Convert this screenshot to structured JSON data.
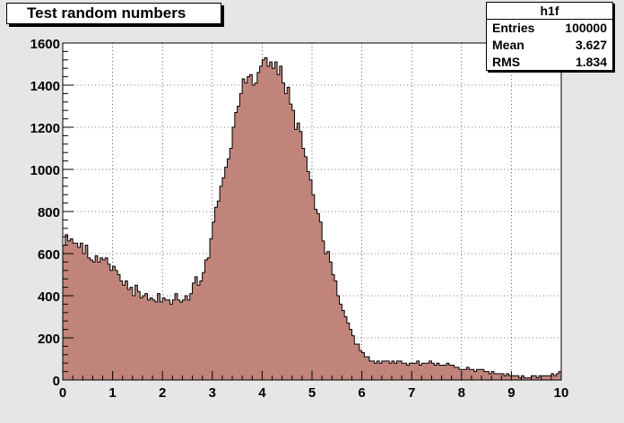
{
  "colors": {
    "fill": "#c0847b",
    "line": "#000000",
    "frame_bg": "#ffffff",
    "canvas_bg": "#e6e6e6"
  },
  "chart_data": {
    "type": "bar",
    "title": "Test random numbers",
    "xlim": [
      0,
      10
    ],
    "ylim": [
      0,
      1600
    ],
    "grid": true,
    "x_ticks": [
      0,
      1,
      2,
      3,
      4,
      5,
      6,
      7,
      8,
      9,
      10
    ],
    "y_ticks": [
      0,
      200,
      400,
      600,
      800,
      1000,
      1200,
      1400,
      1600
    ],
    "bin_edges_start": 0,
    "bin_width": 0.05,
    "values": [
      640,
      690,
      660,
      670,
      650,
      650,
      630,
      650,
      600,
      640,
      580,
      570,
      560,
      590,
      560,
      580,
      570,
      580,
      550,
      520,
      540,
      520,
      500,
      470,
      450,
      470,
      430,
      440,
      400,
      450,
      420,
      390,
      400,
      410,
      380,
      390,
      380,
      370,
      410,
      370,
      390,
      380,
      380,
      360,
      380,
      410,
      380,
      370,
      380,
      400,
      380,
      410,
      460,
      490,
      450,
      470,
      510,
      570,
      580,
      670,
      750,
      820,
      850,
      920,
      960,
      1010,
      1050,
      1100,
      1200,
      1270,
      1300,
      1360,
      1430,
      1410,
      1440,
      1450,
      1400,
      1410,
      1460,
      1490,
      1520,
      1530,
      1490,
      1510,
      1480,
      1510,
      1450,
      1490,
      1410,
      1360,
      1390,
      1310,
      1280,
      1190,
      1220,
      1180,
      1100,
      1060,
      990,
      950,
      880,
      810,
      790,
      750,
      660,
      600,
      610,
      560,
      500,
      470,
      400,
      360,
      330,
      300,
      270,
      240,
      210,
      170,
      170,
      140,
      130,
      110,
      110,
      90,
      90,
      80,
      90,
      80,
      90,
      90,
      90,
      80,
      90,
      80,
      90,
      90,
      80,
      80,
      70,
      80,
      80,
      80,
      90,
      70,
      80,
      80,
      80,
      90,
      80,
      70,
      80,
      70,
      70,
      70,
      80,
      70,
      70,
      60,
      60,
      50,
      50,
      50,
      60,
      50,
      50,
      40,
      50,
      50,
      50,
      40,
      40,
      30,
      40,
      30,
      30,
      30,
      30,
      20,
      30,
      20,
      20,
      20,
      20,
      10,
      20,
      10,
      10,
      10,
      20,
      20,
      10,
      20,
      20,
      20,
      20,
      20,
      30,
      20,
      30,
      40
    ]
  },
  "stats": {
    "name": "h1f",
    "entries_label": "Entries",
    "entries_value": "100000",
    "mean_label": "Mean",
    "mean_value": "3.627",
    "rms_label": "RMS",
    "rms_value": "1.834"
  }
}
